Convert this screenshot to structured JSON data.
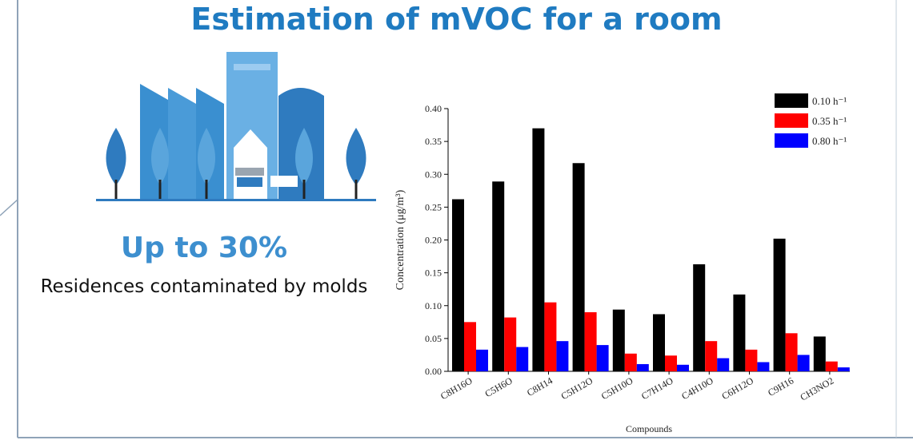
{
  "slide": {
    "title": "Estimation of mVOC for a room",
    "highlight": "Up to 30%",
    "caption": "Residences contaminated by molds"
  },
  "chart_data": {
    "type": "bar",
    "categories": [
      "C8H16O",
      "C5H6O",
      "C8H14",
      "C5H12O",
      "C5H10O",
      "C7H14O",
      "C4H10O",
      "C6H12O",
      "C9H16",
      "CH3NO2"
    ],
    "series": [
      {
        "name": "0.10 h⁻¹",
        "color": "#000000",
        "values": [
          0.262,
          0.289,
          0.37,
          0.317,
          0.094,
          0.087,
          0.163,
          0.117,
          0.202,
          0.053
        ]
      },
      {
        "name": "0.35 h⁻¹",
        "color": "#ff0000",
        "values": [
          0.075,
          0.082,
          0.105,
          0.09,
          0.027,
          0.024,
          0.046,
          0.033,
          0.058,
          0.015
        ]
      },
      {
        "name": "0.80 h⁻¹",
        "color": "#0000ff",
        "values": [
          0.033,
          0.037,
          0.046,
          0.04,
          0.011,
          0.01,
          0.02,
          0.014,
          0.025,
          0.006
        ]
      }
    ],
    "x_label": "Compounds",
    "y_label": "Concentration (μg/m³)",
    "ylim": [
      0,
      0.4
    ],
    "yticks": [
      {
        "value": 0,
        "label": "0.00"
      },
      0.05,
      {
        "value": 0.1,
        "label": "0.10"
      },
      0.15,
      {
        "value": 0.2,
        "label": "0.20"
      },
      0.25,
      {
        "value": 0.3,
        "label": "0.30"
      },
      0.35,
      {
        "value": 0.4,
        "label": "0.40"
      }
    ],
    "legend": "upper right"
  }
}
